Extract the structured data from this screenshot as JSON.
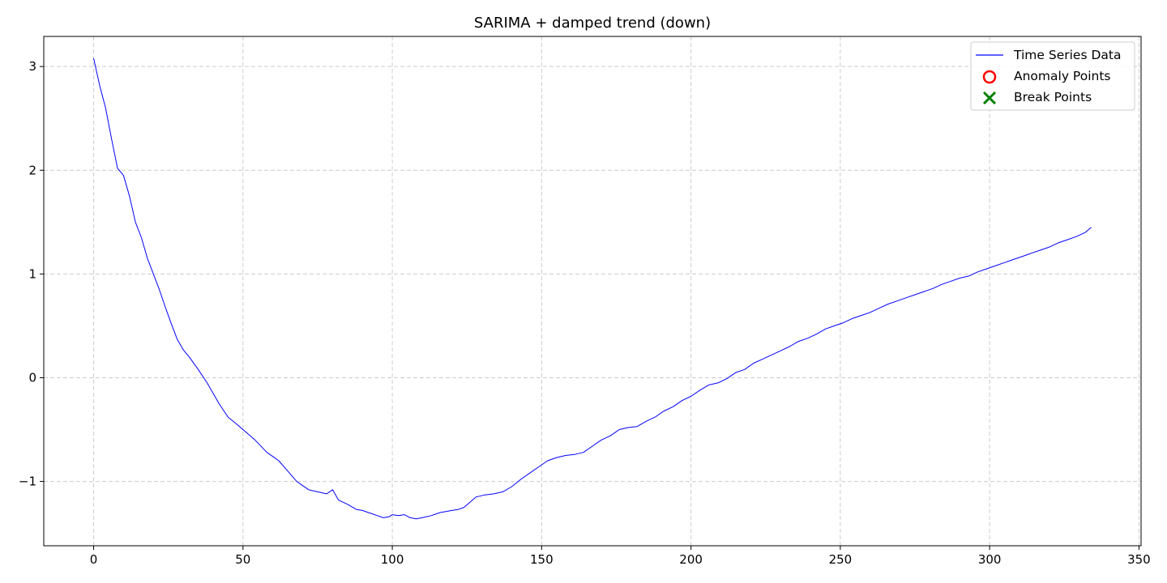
{
  "chart_data": {
    "type": "line",
    "title": "SARIMA + damped trend (down)",
    "xlabel": "",
    "ylabel": "",
    "xlim": [
      -16.7,
      350.7
    ],
    "ylim": [
      -1.62,
      3.29
    ],
    "xticks": [
      0,
      50,
      100,
      150,
      200,
      250,
      300,
      350
    ],
    "yticks": [
      -1,
      0,
      1,
      2,
      3
    ],
    "ytick_labels": [
      "−1",
      "0",
      "1",
      "2",
      "3"
    ],
    "grid": true,
    "legend_position": "top-right",
    "legend": [
      "Time Series Data",
      "Anomaly Points",
      "Break Points"
    ],
    "colors": {
      "line": "#0000ff",
      "anomaly": "#ff0000",
      "break": "#008000",
      "grid": "#cccccc"
    },
    "series": [
      {
        "name": "Time Series Data",
        "x": [
          0,
          2,
          4,
          6,
          8,
          10,
          12,
          14,
          16,
          18,
          20,
          22,
          24,
          26,
          28,
          30,
          32,
          35,
          38,
          40,
          42,
          45,
          48,
          50,
          54,
          58,
          60,
          62,
          65,
          68,
          70,
          72,
          75,
          78,
          80,
          82,
          85,
          88,
          90,
          92,
          95,
          97,
          99,
          100,
          102,
          104,
          106,
          108,
          110,
          113,
          116,
          120,
          122,
          124,
          126,
          128,
          131,
          134,
          137,
          140,
          143,
          146,
          149,
          152,
          155,
          158,
          161,
          164,
          167,
          170,
          173,
          176,
          179,
          182,
          185,
          188,
          191,
          194,
          197,
          200,
          203,
          206,
          209,
          212,
          215,
          218,
          221,
          224,
          227,
          230,
          233,
          236,
          239,
          242,
          245,
          248,
          251,
          254,
          257,
          260,
          263,
          266,
          269,
          272,
          275,
          278,
          281,
          284,
          287,
          290,
          293,
          296,
          299,
          302,
          305,
          308,
          311,
          314,
          317,
          320,
          323,
          326,
          329,
          332,
          334
        ],
        "y": [
          3.08,
          2.82,
          2.6,
          2.3,
          2.02,
          1.95,
          1.75,
          1.5,
          1.35,
          1.15,
          1.0,
          0.85,
          0.68,
          0.52,
          0.37,
          0.27,
          0.2,
          0.08,
          -0.05,
          -0.15,
          -0.25,
          -0.38,
          -0.45,
          -0.5,
          -0.6,
          -0.72,
          -0.76,
          -0.8,
          -0.9,
          -1.0,
          -1.04,
          -1.08,
          -1.1,
          -1.12,
          -1.08,
          -1.18,
          -1.22,
          -1.27,
          -1.28,
          -1.3,
          -1.33,
          -1.35,
          -1.34,
          -1.32,
          -1.33,
          -1.32,
          -1.35,
          -1.36,
          -1.35,
          -1.33,
          -1.3,
          -1.28,
          -1.27,
          -1.25,
          -1.2,
          -1.15,
          -1.13,
          -1.12,
          -1.1,
          -1.05,
          -0.98,
          -0.92,
          -0.86,
          -0.8,
          -0.77,
          -0.75,
          -0.74,
          -0.72,
          -0.66,
          -0.6,
          -0.56,
          -0.5,
          -0.48,
          -0.47,
          -0.42,
          -0.38,
          -0.32,
          -0.28,
          -0.22,
          -0.18,
          -0.12,
          -0.07,
          -0.05,
          -0.01,
          0.05,
          0.08,
          0.14,
          0.18,
          0.22,
          0.26,
          0.3,
          0.35,
          0.38,
          0.42,
          0.47,
          0.5,
          0.53,
          0.57,
          0.6,
          0.63,
          0.67,
          0.71,
          0.74,
          0.77,
          0.8,
          0.83,
          0.86,
          0.9,
          0.93,
          0.96,
          0.98,
          1.02,
          1.05,
          1.08,
          1.11,
          1.14,
          1.17,
          1.2,
          1.23,
          1.26,
          1.3,
          1.33,
          1.36,
          1.4,
          1.45
        ]
      }
    ],
    "anomaly_points": [],
    "break_points": []
  }
}
